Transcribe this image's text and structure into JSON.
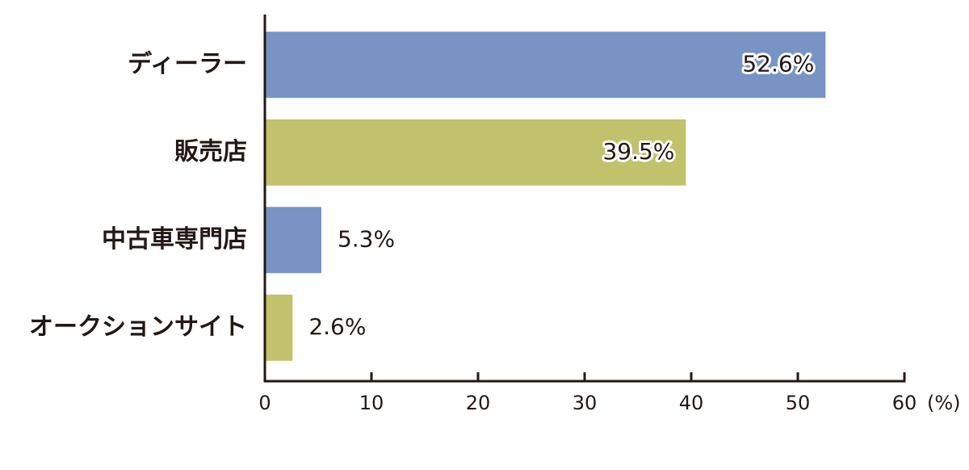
{
  "chart_data": {
    "type": "bar",
    "orientation": "horizontal",
    "categories": [
      "ディーラー",
      "販売店",
      "中古車専門店",
      "オークションサイト"
    ],
    "values": [
      52.6,
      39.5,
      5.3,
      2.6
    ],
    "value_labels": [
      "52.6%",
      "39.5%",
      "5.3%",
      "2.6%"
    ],
    "colors": [
      "#7794c4",
      "#c1c26b",
      "#7794c4",
      "#c1c26b"
    ],
    "xlabel": "(%)",
    "xlim": [
      0,
      60
    ],
    "xticks": [
      0,
      10,
      20,
      30,
      40,
      50,
      60
    ],
    "grid": false
  }
}
